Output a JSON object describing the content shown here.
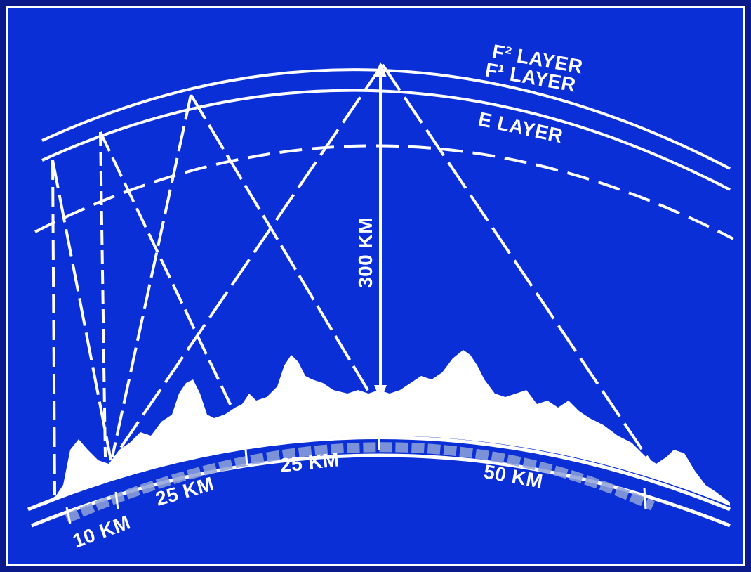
{
  "colors": {
    "background": "#0a1a8a",
    "outer_frame": "#0a1a8a",
    "inner_panel": "#0b2fd6",
    "ink": "#ffffff"
  },
  "labels": {
    "f2_layer": "F² LAYER",
    "f1_layer": "F¹ LAYER",
    "e_layer": "E LAYER",
    "height": "300 KM",
    "dist_10": "10 KM",
    "dist_25_a": "25 KM",
    "dist_25_b": "25 KM",
    "dist_50": "50 KM"
  }
}
